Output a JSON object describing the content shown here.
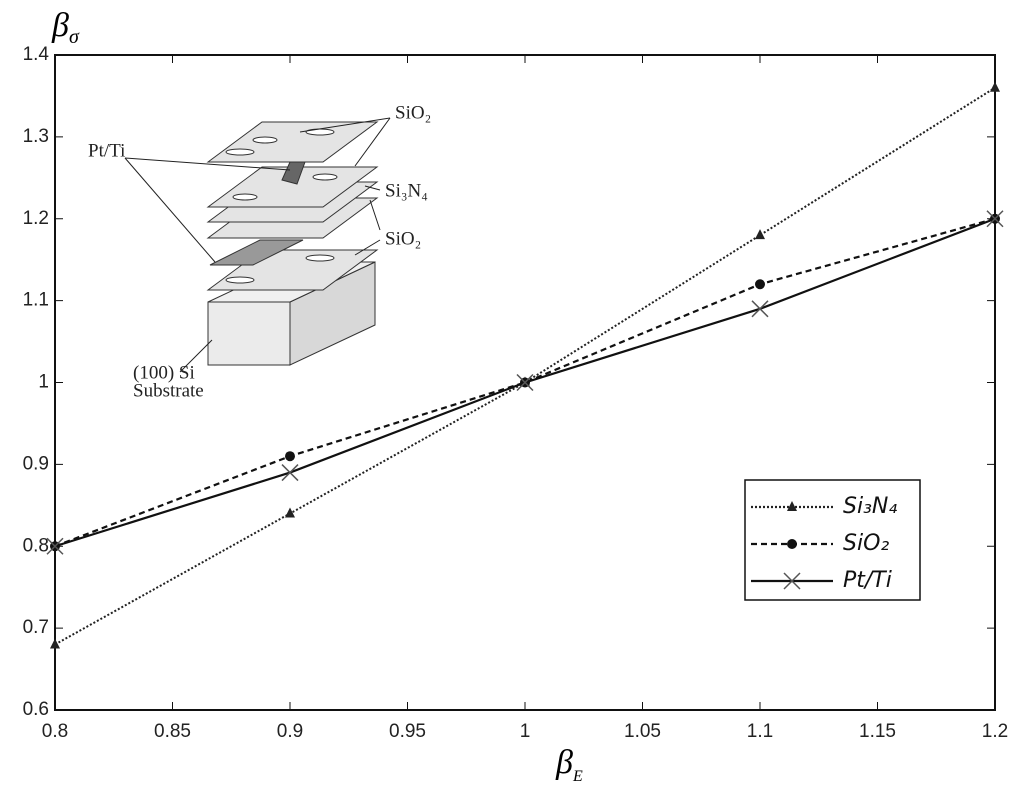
{
  "chart_data": {
    "type": "line",
    "xlabel": {
      "main": "β",
      "sub": "E"
    },
    "ylabel": {
      "main": "β",
      "sub": "σ"
    },
    "x": [
      0.8,
      0.9,
      1.0,
      1.1,
      1.2
    ],
    "series": [
      {
        "name": "Si₃N₄",
        "color": "#222222",
        "dash": "dotted",
        "marker": "triangle",
        "values": [
          0.68,
          0.84,
          1.0,
          1.18,
          1.36
        ]
      },
      {
        "name": "SiO₂",
        "color": "#111111",
        "dash": "dashed",
        "marker": "circle",
        "values": [
          0.8,
          0.91,
          1.0,
          1.12,
          1.2
        ]
      },
      {
        "name": "Pt/Ti",
        "color": "#111111",
        "dash": "solid",
        "marker": "x",
        "values": [
          0.8,
          0.89,
          1.0,
          1.09,
          1.2
        ]
      }
    ],
    "xlim": [
      0.8,
      1.2
    ],
    "xticks": [
      0.8,
      0.85,
      0.9,
      0.95,
      1,
      1.05,
      1.1,
      1.15,
      1.2
    ],
    "ylim": [
      0.6,
      1.4
    ],
    "yticks": [
      0.6,
      0.7,
      0.8,
      0.9,
      1,
      1.1,
      1.2,
      1.3,
      1.4
    ],
    "legend": "right",
    "inset": {
      "labels": [
        "SiO₂",
        "Pt/Ti",
        "Si₃N₄",
        "SiO₂",
        "(100) Si",
        "Substrate"
      ]
    }
  }
}
